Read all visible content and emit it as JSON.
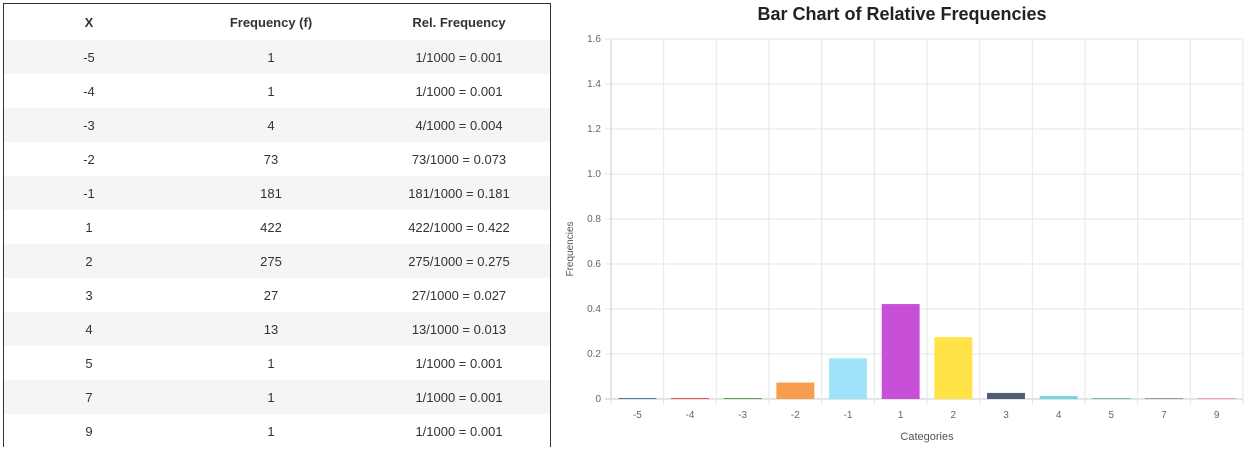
{
  "table": {
    "headers": [
      "X",
      "Frequency (f)",
      "Rel. Frequency"
    ],
    "rows": [
      [
        "-5",
        "1",
        "1/1000 = 0.001"
      ],
      [
        "-4",
        "1",
        "1/1000 = 0.001"
      ],
      [
        "-3",
        "4",
        "4/1000 = 0.004"
      ],
      [
        "-2",
        "73",
        "73/1000 = 0.073"
      ],
      [
        "-1",
        "181",
        "181/1000 = 0.181"
      ],
      [
        "1",
        "422",
        "422/1000 = 0.422"
      ],
      [
        "2",
        "275",
        "275/1000 = 0.275"
      ],
      [
        "3",
        "27",
        "27/1000 = 0.027"
      ],
      [
        "4",
        "13",
        "13/1000 = 0.013"
      ],
      [
        "5",
        "1",
        "1/1000 = 0.001"
      ],
      [
        "7",
        "1",
        "1/1000 = 0.001"
      ],
      [
        "9",
        "1",
        "1/1000 = 0.001"
      ]
    ]
  },
  "chart_data": {
    "type": "bar",
    "title": "Bar Chart of Relative Frequencies",
    "xlabel": "Categories",
    "ylabel": "Frequencies",
    "categories": [
      "-5",
      "-4",
      "-3",
      "-2",
      "-1",
      "1",
      "2",
      "3",
      "4",
      "5",
      "7",
      "9"
    ],
    "values": [
      0.001,
      0.001,
      0.004,
      0.073,
      0.181,
      0.422,
      0.275,
      0.027,
      0.013,
      0.001,
      0.001,
      0.001
    ],
    "colors": [
      "#4e79a7",
      "#e15759",
      "#59a14f",
      "#f89c4f",
      "#9fe3fb",
      "#c84fd8",
      "#ffe347",
      "#4f5d73",
      "#79d5e3",
      "#76b7b2",
      "#9c9c9c",
      "#ff9da7"
    ],
    "yticks": [
      "0",
      "0.2",
      "0.4",
      "0.6",
      "0.8",
      "1.0",
      "1.2",
      "1.4",
      "1.6"
    ],
    "ylim": [
      0,
      1.6
    ],
    "grid": true,
    "legend": "none"
  }
}
